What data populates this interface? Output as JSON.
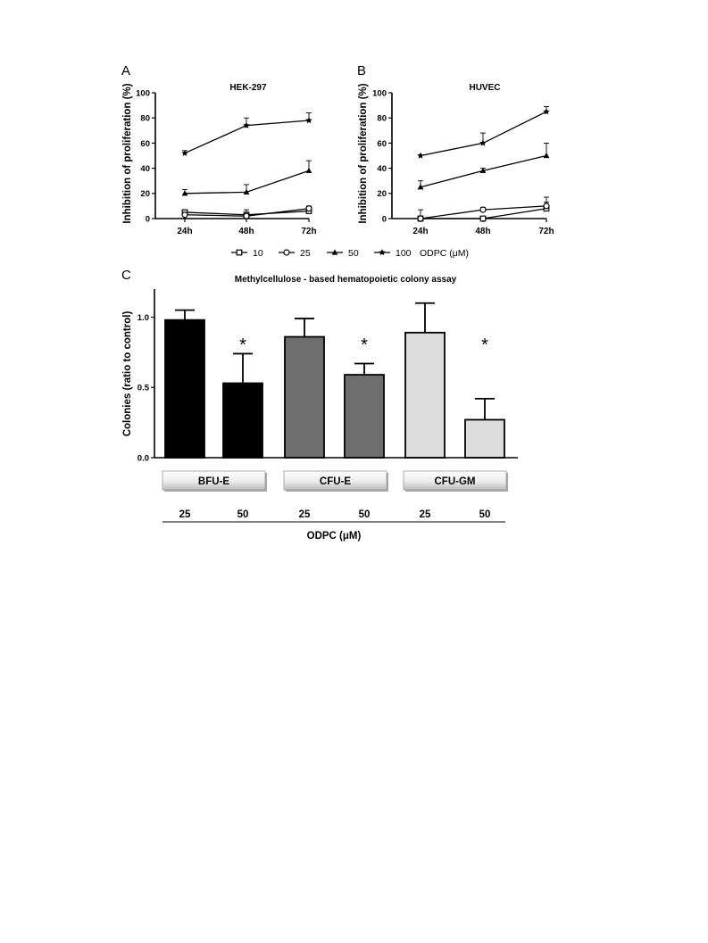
{
  "panels": {
    "a": {
      "letter": "A"
    },
    "b": {
      "letter": "B"
    },
    "c": {
      "letter": "C"
    }
  },
  "legend": {
    "concentrations_label": "ODPC (μM)"
  },
  "chart_data": [
    {
      "type": "line",
      "title": "HEK-297",
      "ylabel": "Inhibition of proliferation (%)",
      "xlabel": "",
      "categories": [
        "24h",
        "48h",
        "72h"
      ],
      "ylim": [
        0,
        100
      ],
      "yticks": [
        0,
        20,
        40,
        60,
        80,
        100
      ],
      "series": [
        {
          "name": "10",
          "marker": "square-open",
          "values": [
            5,
            3,
            6
          ],
          "errors": [
            1,
            2,
            2
          ]
        },
        {
          "name": "25",
          "marker": "circle-open",
          "values": [
            3,
            2,
            8
          ],
          "errors": [
            1,
            5,
            2
          ]
        },
        {
          "name": "50",
          "marker": "triangle-filled",
          "values": [
            20,
            21,
            38
          ],
          "errors": [
            3,
            6,
            8
          ]
        },
        {
          "name": "100",
          "marker": "star-filled",
          "values": [
            52,
            74,
            78
          ],
          "errors": [
            2,
            6,
            6
          ]
        }
      ]
    },
    {
      "type": "line",
      "title": "HUVEC",
      "ylabel": "Inhibition of proliferation (%)",
      "xlabel": "",
      "categories": [
        "24h",
        "48h",
        "72h"
      ],
      "ylim": [
        0,
        100
      ],
      "yticks": [
        0,
        20,
        40,
        60,
        80,
        100
      ],
      "series": [
        {
          "name": "10",
          "marker": "square-open",
          "values": [
            0,
            0,
            8
          ],
          "errors": [
            7,
            0,
            5
          ]
        },
        {
          "name": "25",
          "marker": "circle-open",
          "values": [
            0,
            7,
            10
          ],
          "errors": [
            2,
            2,
            7
          ]
        },
        {
          "name": "50",
          "marker": "triangle-filled",
          "values": [
            25,
            38,
            50
          ],
          "errors": [
            5,
            2,
            10
          ]
        },
        {
          "name": "100",
          "marker": "star-filled",
          "values": [
            50,
            60,
            85
          ],
          "errors": [
            0,
            8,
            4
          ]
        }
      ]
    },
    {
      "type": "bar",
      "title": "Methylcellulose - based hematopoietic colony assay",
      "ylabel": "Colonies (ratio to control)",
      "xlabel": "ODPC (μM)",
      "ylim": [
        0,
        1.2
      ],
      "yticks": [
        "0.0",
        "0.5",
        "1.0"
      ],
      "groups": [
        {
          "name": "BFU-E",
          "color": "#000000"
        },
        {
          "name": "CFU-E",
          "color": "#6e6e6e"
        },
        {
          "name": "CFU-GM",
          "color": "#dcdcdc"
        }
      ],
      "bars": [
        {
          "group": "BFU-E",
          "concentration": "25",
          "value": 0.98,
          "error": 0.07,
          "significant": false
        },
        {
          "group": "BFU-E",
          "concentration": "50",
          "value": 0.53,
          "error": 0.21,
          "significant": true
        },
        {
          "group": "CFU-E",
          "concentration": "25",
          "value": 0.86,
          "error": 0.13,
          "significant": false
        },
        {
          "group": "CFU-E",
          "concentration": "50",
          "value": 0.59,
          "error": 0.08,
          "significant": true
        },
        {
          "group": "CFU-GM",
          "concentration": "25",
          "value": 0.89,
          "error": 0.21,
          "significant": false
        },
        {
          "group": "CFU-GM",
          "concentration": "50",
          "value": 0.27,
          "error": 0.15,
          "significant": true
        }
      ],
      "significance_mark": "*"
    }
  ]
}
